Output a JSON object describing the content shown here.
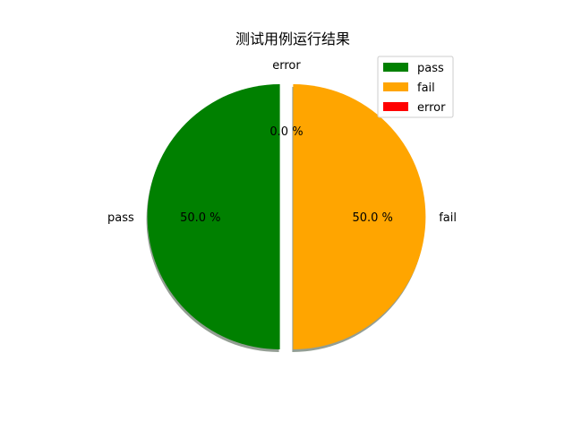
{
  "chart_data": {
    "type": "pie",
    "title": "测试用例运行结果",
    "slices": [
      {
        "label": "pass",
        "value": 50.0,
        "percent_label": "50.0 %",
        "color": "#008000"
      },
      {
        "label": "fail",
        "value": 50.0,
        "percent_label": "50.0 %",
        "color": "#FFA500"
      },
      {
        "label": "error",
        "value": 0.0,
        "percent_label": "0.0 %",
        "color": "#FF0000"
      }
    ],
    "shadow": true,
    "legend": {
      "placement": "top-right",
      "entries": [
        "pass",
        "fail",
        "error"
      ]
    }
  }
}
